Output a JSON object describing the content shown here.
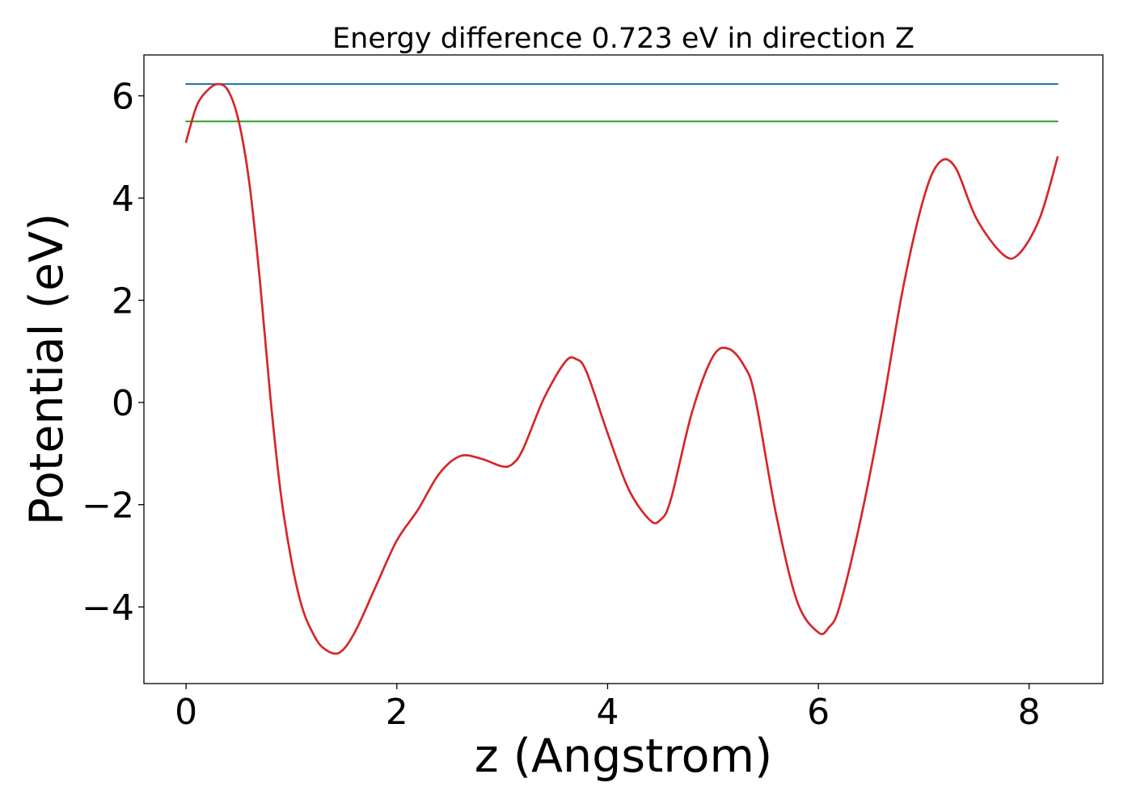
{
  "chart_data": {
    "type": "line",
    "title": "Energy difference 0.723 eV in direction Z",
    "xlabel": "z (Angstrom)",
    "ylabel": "Potential (eV)",
    "xlim": [
      -0.4,
      8.7
    ],
    "ylim": [
      -5.5,
      6.8
    ],
    "xticks": [
      0,
      2,
      4,
      6,
      8
    ],
    "yticks": [
      -4,
      -2,
      0,
      2,
      4,
      6
    ],
    "xtick_labels": [
      "0",
      "2",
      "4",
      "6",
      "8"
    ],
    "ytick_labels": [
      "−4",
      "−2",
      "0",
      "2",
      "4",
      "6"
    ],
    "grid": false,
    "legend": "none",
    "series": [
      {
        "color": "#1f77b4",
        "x": [
          0,
          8.27
        ],
        "y": [
          6.23,
          6.23
        ]
      },
      {
        "color": "#2ca02c",
        "x": [
          0,
          8.27
        ],
        "y": [
          5.5,
          5.5
        ]
      },
      {
        "color": "#d62728",
        "x": [
          0,
          0.1,
          0.2,
          0.3,
          0.4,
          0.5,
          0.6,
          0.7,
          0.8,
          0.9,
          1.0,
          1.1,
          1.2,
          1.3,
          1.45,
          1.6,
          1.8,
          2.0,
          2.2,
          2.4,
          2.6,
          2.8,
          3.0,
          3.1,
          3.2,
          3.4,
          3.6,
          3.7,
          3.8,
          4.0,
          4.2,
          4.4,
          4.5,
          4.6,
          4.8,
          5.0,
          5.15,
          5.3,
          5.4,
          5.6,
          5.8,
          6.0,
          6.1,
          6.2,
          6.4,
          6.6,
          6.8,
          7.0,
          7.15,
          7.3,
          7.5,
          7.75,
          7.9,
          8.1,
          8.27
        ],
        "y": [
          5.1,
          5.8,
          6.1,
          6.23,
          6.1,
          5.5,
          4.3,
          2.4,
          0.1,
          -1.8,
          -3.1,
          -4.0,
          -4.5,
          -4.8,
          -4.9,
          -4.5,
          -3.6,
          -2.7,
          -2.1,
          -1.4,
          -1.05,
          -1.1,
          -1.25,
          -1.2,
          -0.9,
          0.1,
          0.8,
          0.85,
          0.6,
          -0.6,
          -1.7,
          -2.3,
          -2.3,
          -1.9,
          -0.2,
          0.9,
          1.05,
          0.7,
          0.1,
          -2.2,
          -3.9,
          -4.5,
          -4.4,
          -4.0,
          -2.3,
          -0.2,
          2.2,
          4.0,
          4.7,
          4.6,
          3.6,
          2.9,
          2.9,
          3.6,
          4.8
        ]
      }
    ]
  }
}
